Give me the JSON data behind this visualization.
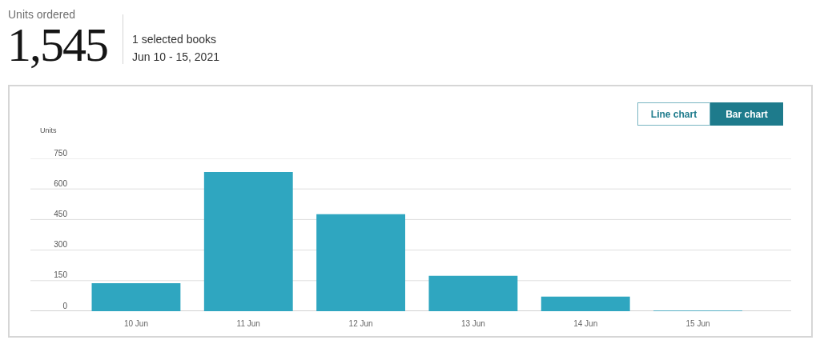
{
  "chart_data": {
    "type": "bar",
    "title": "Units ordered",
    "ylabel": "Units",
    "annotations": [
      "1,545",
      "1 selected books",
      "Jun 10 - 15, 2021",
      "Line chart",
      "Bar chart"
    ],
    "categories": [
      "10 Jun",
      "11 Jun",
      "12 Jun",
      "13 Jun",
      "14 Jun",
      "15 Jun"
    ],
    "values": [
      137,
      683,
      476,
      174,
      72,
      3
    ],
    "color": "#2fa6c0",
    "ylim": [
      0,
      750
    ],
    "yticks": [
      0,
      150,
      300,
      450,
      600,
      750
    ],
    "grid": "y"
  }
}
